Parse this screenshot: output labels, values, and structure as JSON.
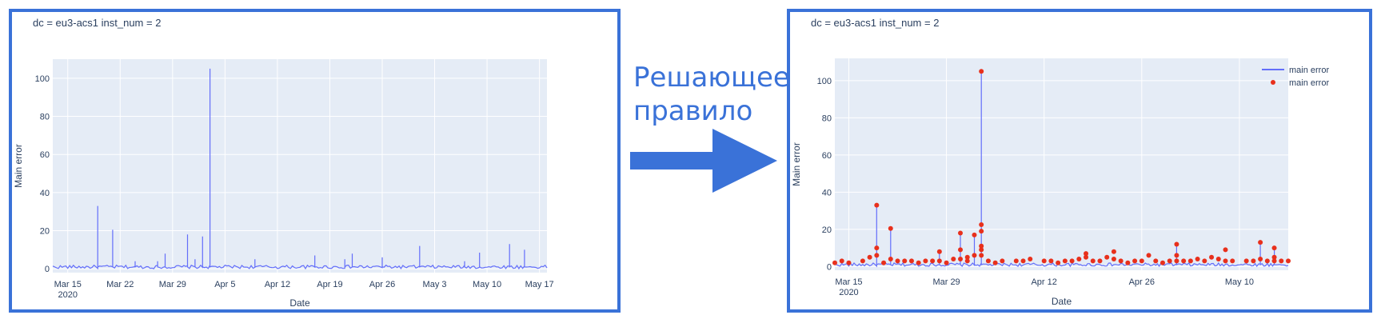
{
  "arrow": {
    "line1": "Решающее",
    "line2": "правило",
    "color": "#3a72d8"
  },
  "colors": {
    "frame": "#3a72d8",
    "plot_bg": "#e5ecf6",
    "series_line": "#636efa",
    "anomaly_marker": "#e8301c"
  },
  "chart_data": [
    {
      "type": "line",
      "title": "dc = eu3-acs1 inst_num = 2",
      "xlabel": "Date",
      "ylabel": "Main error",
      "x_range": [
        "2020-03-13",
        "2020-05-18"
      ],
      "ylim": [
        -2,
        110
      ],
      "y_ticks": [
        0,
        20,
        40,
        60,
        80,
        100
      ],
      "x_ticks": [
        {
          "date": "2020-03-15",
          "label": "Mar 15",
          "sublabel": "2020"
        },
        {
          "date": "2020-03-22",
          "label": "Mar 22"
        },
        {
          "date": "2020-03-29",
          "label": "Mar 29"
        },
        {
          "date": "2020-04-05",
          "label": "Apr 5"
        },
        {
          "date": "2020-04-12",
          "label": "Apr 12"
        },
        {
          "date": "2020-04-19",
          "label": "Apr 19"
        },
        {
          "date": "2020-04-26",
          "label": "Apr 26"
        },
        {
          "date": "2020-05-03",
          "label": "May 3"
        },
        {
          "date": "2020-05-10",
          "label": "May 10"
        },
        {
          "date": "2020-05-17",
          "label": "May 17"
        }
      ],
      "grid": true,
      "legend": "none",
      "series": [
        {
          "baseline": 1,
          "points": [
            {
              "x": "2020-03-19",
              "y": 33
            },
            {
              "x": "2020-03-21",
              "y": 20.5
            },
            {
              "x": "2020-03-24",
              "y": 4
            },
            {
              "x": "2020-03-27",
              "y": 4
            },
            {
              "x": "2020-03-28",
              "y": 8
            },
            {
              "x": "2020-03-31",
              "y": 18
            },
            {
              "x": "2020-04-01",
              "y": 5
            },
            {
              "x": "2020-04-02",
              "y": 17
            },
            {
              "x": "2020-04-03",
              "y": 105
            },
            {
              "x": "2020-04-09",
              "y": 5
            },
            {
              "x": "2020-04-17",
              "y": 7
            },
            {
              "x": "2020-04-21",
              "y": 5
            },
            {
              "x": "2020-04-22",
              "y": 8
            },
            {
              "x": "2020-04-26",
              "y": 6
            },
            {
              "x": "2020-05-01",
              "y": 12
            },
            {
              "x": "2020-05-07",
              "y": 4
            },
            {
              "x": "2020-05-09",
              "y": 8.5
            },
            {
              "x": "2020-05-13",
              "y": 13
            },
            {
              "x": "2020-05-15",
              "y": 10
            }
          ]
        }
      ]
    },
    {
      "type": "line",
      "title": "dc = eu3-acs1 inst_num = 2",
      "xlabel": "Date",
      "ylabel": "Main error",
      "x_range": [
        "2020-03-13",
        "2020-05-17"
      ],
      "ylim": [
        -2,
        112
      ],
      "y_ticks": [
        0,
        20,
        40,
        60,
        80,
        100
      ],
      "x_ticks": [
        {
          "date": "2020-03-15",
          "label": "Mar 15",
          "sublabel": "2020"
        },
        {
          "date": "2020-03-29",
          "label": "Mar 29"
        },
        {
          "date": "2020-04-12",
          "label": "Apr 12"
        },
        {
          "date": "2020-04-26",
          "label": "Apr 26"
        },
        {
          "date": "2020-05-10",
          "label": "May 10"
        }
      ],
      "grid": true,
      "legend": "top-right",
      "series": [
        {
          "name": "main error",
          "mode": "lines",
          "baseline": 1,
          "points": [
            {
              "x": "2020-03-19",
              "y": 33
            },
            {
              "x": "2020-03-21",
              "y": 20.5
            },
            {
              "x": "2020-03-28",
              "y": 8
            },
            {
              "x": "2020-03-31",
              "y": 18
            },
            {
              "x": "2020-04-02",
              "y": 17
            },
            {
              "x": "2020-04-03",
              "y": 105
            },
            {
              "x": "2020-05-01",
              "y": 12
            },
            {
              "x": "2020-05-13",
              "y": 13
            },
            {
              "x": "2020-05-15",
              "y": 10
            }
          ]
        },
        {
          "name": "main error",
          "mode": "markers",
          "points": [
            {
              "x": "2020-03-13",
              "y": 2
            },
            {
              "x": "2020-03-14",
              "y": 3
            },
            {
              "x": "2020-03-15",
              "y": 2
            },
            {
              "x": "2020-03-17",
              "y": 3
            },
            {
              "x": "2020-03-18",
              "y": 5
            },
            {
              "x": "2020-03-19",
              "y": 33
            },
            {
              "x": "2020-03-19",
              "y": 10
            },
            {
              "x": "2020-03-19",
              "y": 6
            },
            {
              "x": "2020-03-20",
              "y": 2
            },
            {
              "x": "2020-03-21",
              "y": 20.5
            },
            {
              "x": "2020-03-21",
              "y": 4
            },
            {
              "x": "2020-03-22",
              "y": 3
            },
            {
              "x": "2020-03-23",
              "y": 3
            },
            {
              "x": "2020-03-24",
              "y": 3
            },
            {
              "x": "2020-03-25",
              "y": 2
            },
            {
              "x": "2020-03-26",
              "y": 3
            },
            {
              "x": "2020-03-27",
              "y": 3
            },
            {
              "x": "2020-03-28",
              "y": 8
            },
            {
              "x": "2020-03-28",
              "y": 3
            },
            {
              "x": "2020-03-29",
              "y": 2
            },
            {
              "x": "2020-03-30",
              "y": 4
            },
            {
              "x": "2020-03-31",
              "y": 18
            },
            {
              "x": "2020-03-31",
              "y": 9
            },
            {
              "x": "2020-03-31",
              "y": 4
            },
            {
              "x": "2020-04-01",
              "y": 5
            },
            {
              "x": "2020-04-01",
              "y": 3
            },
            {
              "x": "2020-04-02",
              "y": 17
            },
            {
              "x": "2020-04-02",
              "y": 6
            },
            {
              "x": "2020-04-03",
              "y": 105
            },
            {
              "x": "2020-04-03",
              "y": 22.5
            },
            {
              "x": "2020-04-03",
              "y": 19
            },
            {
              "x": "2020-04-03",
              "y": 11
            },
            {
              "x": "2020-04-03",
              "y": 9
            },
            {
              "x": "2020-04-03",
              "y": 6
            },
            {
              "x": "2020-04-04",
              "y": 3
            },
            {
              "x": "2020-04-05",
              "y": 2
            },
            {
              "x": "2020-04-06",
              "y": 3
            },
            {
              "x": "2020-04-08",
              "y": 3
            },
            {
              "x": "2020-04-09",
              "y": 3
            },
            {
              "x": "2020-04-10",
              "y": 4
            },
            {
              "x": "2020-04-12",
              "y": 3
            },
            {
              "x": "2020-04-13",
              "y": 3
            },
            {
              "x": "2020-04-14",
              "y": 2
            },
            {
              "x": "2020-04-15",
              "y": 3
            },
            {
              "x": "2020-04-16",
              "y": 3
            },
            {
              "x": "2020-04-17",
              "y": 4
            },
            {
              "x": "2020-04-18",
              "y": 5
            },
            {
              "x": "2020-04-18",
              "y": 7
            },
            {
              "x": "2020-04-19",
              "y": 3
            },
            {
              "x": "2020-04-20",
              "y": 3
            },
            {
              "x": "2020-04-21",
              "y": 5
            },
            {
              "x": "2020-04-22",
              "y": 8
            },
            {
              "x": "2020-04-22",
              "y": 4
            },
            {
              "x": "2020-04-23",
              "y": 3
            },
            {
              "x": "2020-04-24",
              "y": 2
            },
            {
              "x": "2020-04-25",
              "y": 3
            },
            {
              "x": "2020-04-26",
              "y": 3
            },
            {
              "x": "2020-04-27",
              "y": 6
            },
            {
              "x": "2020-04-28",
              "y": 3
            },
            {
              "x": "2020-04-29",
              "y": 2
            },
            {
              "x": "2020-04-30",
              "y": 3
            },
            {
              "x": "2020-05-01",
              "y": 12
            },
            {
              "x": "2020-05-01",
              "y": 6
            },
            {
              "x": "2020-05-01",
              "y": 3
            },
            {
              "x": "2020-05-02",
              "y": 3
            },
            {
              "x": "2020-05-03",
              "y": 3
            },
            {
              "x": "2020-05-04",
              "y": 4
            },
            {
              "x": "2020-05-05",
              "y": 3
            },
            {
              "x": "2020-05-06",
              "y": 5
            },
            {
              "x": "2020-05-07",
              "y": 4
            },
            {
              "x": "2020-05-08",
              "y": 9
            },
            {
              "x": "2020-05-08",
              "y": 3
            },
            {
              "x": "2020-05-09",
              "y": 3
            },
            {
              "x": "2020-05-11",
              "y": 3
            },
            {
              "x": "2020-05-12",
              "y": 3
            },
            {
              "x": "2020-05-13",
              "y": 13
            },
            {
              "x": "2020-05-13",
              "y": 4
            },
            {
              "x": "2020-05-14",
              "y": 3
            },
            {
              "x": "2020-05-15",
              "y": 10
            },
            {
              "x": "2020-05-15",
              "y": 5
            },
            {
              "x": "2020-05-15",
              "y": 3
            },
            {
              "x": "2020-05-16",
              "y": 3
            },
            {
              "x": "2020-05-17",
              "y": 3
            }
          ]
        }
      ]
    }
  ]
}
